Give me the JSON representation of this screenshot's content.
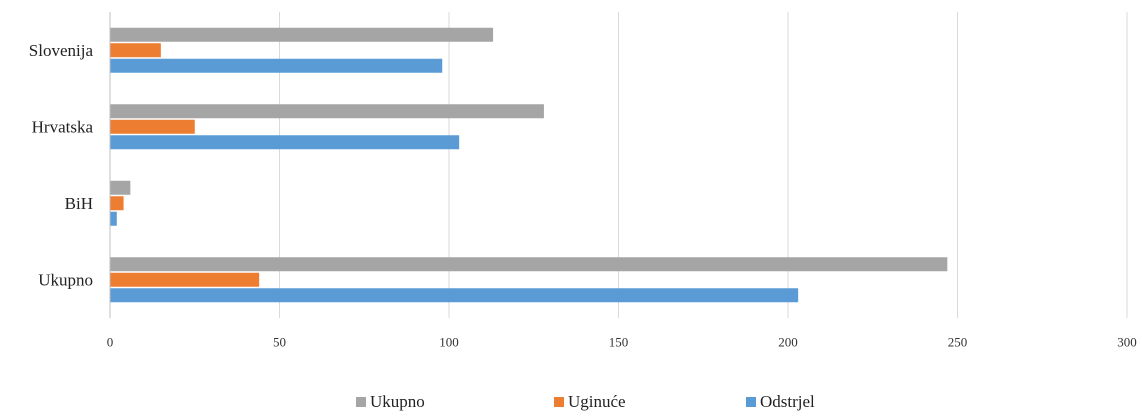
{
  "chart_data": {
    "type": "bar",
    "orientation": "horizontal",
    "categories": [
      "Slovenija",
      "Hrvatska",
      "BiH",
      "Ukupno"
    ],
    "series": [
      {
        "name": "Ukupno",
        "color": "#A5A5A5",
        "values": [
          113,
          128,
          6,
          247
        ]
      },
      {
        "name": "Uginuće",
        "color": "#ED7D31",
        "values": [
          15,
          25,
          4,
          44
        ]
      },
      {
        "name": "Odstrjel",
        "color": "#5B9BD5",
        "values": [
          98,
          103,
          2,
          203
        ]
      }
    ],
    "xlim": [
      0,
      300
    ],
    "xticks": [
      "0",
      "50",
      "100",
      "150",
      "200",
      "250",
      "300"
    ],
    "grid": "vertical",
    "legend_position": "bottom",
    "title": "",
    "xlabel": "",
    "ylabel": ""
  }
}
